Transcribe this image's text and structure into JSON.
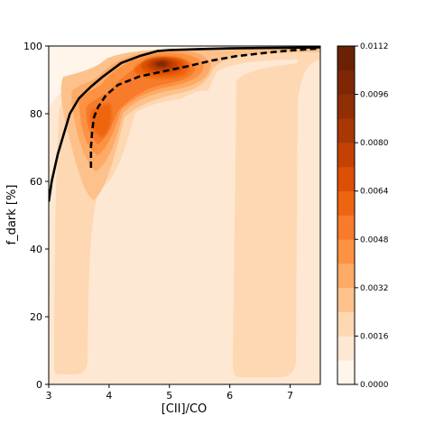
{
  "chart_data": {
    "type": "contour",
    "xlabel": "[CII]/CO",
    "ylabel": "f_dark [%]",
    "xlim": [
      3,
      7.5
    ],
    "ylim": [
      0,
      100
    ],
    "x_ticks": [
      "3",
      "4",
      "5",
      "6",
      "7"
    ],
    "y_ticks": [
      "0",
      "20",
      "40",
      "60",
      "80",
      "100"
    ],
    "colorbar": {
      "colormap": "Oranges",
      "range": [
        0.0,
        0.0112
      ],
      "tick_labels": [
        "0.0000",
        "0.0016",
        "0.0032",
        "0.0048",
        "0.0064",
        "0.0080",
        "0.0096",
        "0.0112"
      ],
      "levels": [
        0.0,
        0.0008,
        0.0016,
        0.0024,
        0.0032,
        0.004,
        0.0048,
        0.0056,
        0.0064,
        0.0072,
        0.008,
        0.0088,
        0.0096,
        0.0104,
        0.0112
      ],
      "colors": [
        "#fff5eb",
        "#fee8d3",
        "#fdd8b3",
        "#fdc28c",
        "#fdab67",
        "#fd9243",
        "#f77b2a",
        "#ee6511",
        "#dd4f05",
        "#c44103",
        "#a83703",
        "#8f2f03",
        "#7f2704",
        "#6b2103"
      ]
    },
    "density_peaks": [
      {
        "x": 4.8,
        "y": 94,
        "level_max": 0.0112
      },
      {
        "x": 3.85,
        "y": 78,
        "level_max": 0.0072
      }
    ],
    "series": [
      {
        "style": "solid",
        "color": "#000000",
        "x": [
          3.0,
          3.05,
          3.15,
          3.25,
          3.35,
          3.5,
          3.7,
          3.9,
          4.2,
          4.5,
          4.8,
          5.0,
          5.5,
          6.0,
          6.5,
          7.0,
          7.5
        ],
        "y": [
          54,
          60,
          68,
          74,
          80,
          84.5,
          88,
          91,
          95,
          97,
          98.5,
          98.8,
          99.1,
          99.3,
          99.4,
          99.5,
          99.6
        ]
      },
      {
        "style": "dashed",
        "color": "#000000",
        "x": [
          3.7,
          3.7,
          3.72,
          3.75,
          3.82,
          3.95,
          4.15,
          4.5,
          4.9,
          5.3,
          5.7,
          6.1,
          6.6,
          7.0,
          7.5
        ],
        "y": [
          64,
          70,
          75,
          79,
          82,
          85.5,
          88.5,
          91,
          92.5,
          94,
          95.7,
          97,
          98,
          98.7,
          99.3
        ]
      }
    ]
  }
}
